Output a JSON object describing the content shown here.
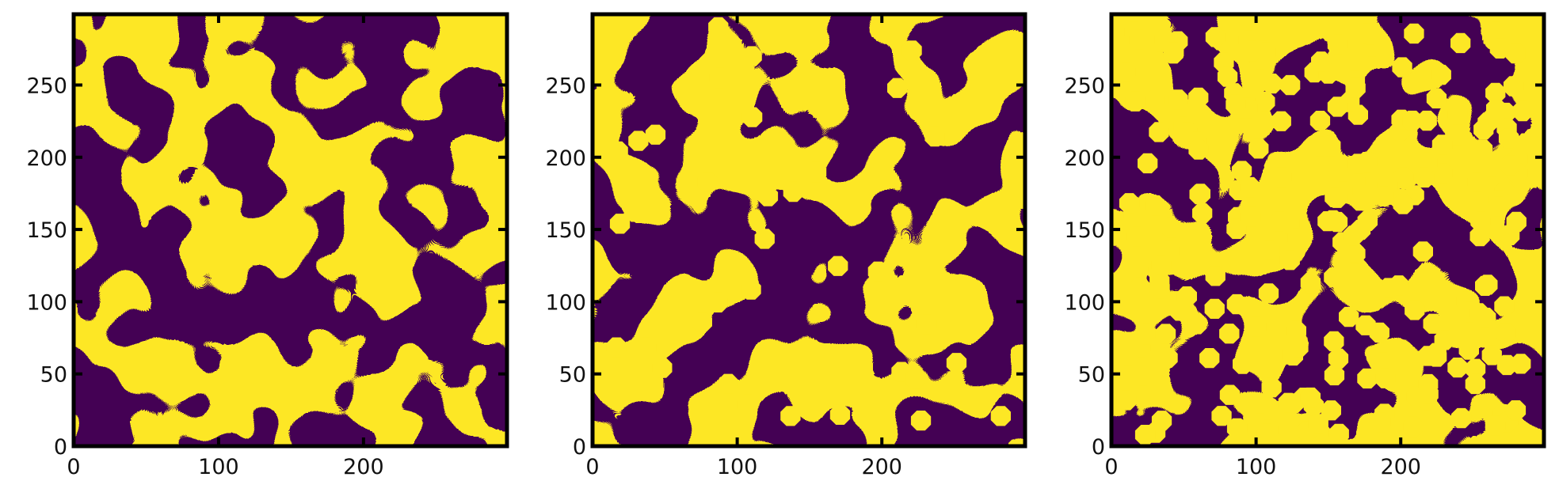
{
  "figure": {
    "colors": {
      "phase_low": "#440154",
      "phase_high": "#fde725",
      "axes": "#000000"
    },
    "panel_count": 3
  },
  "chart_data": [
    {
      "type": "heatmap",
      "title": "",
      "xlabel": "",
      "ylabel": "",
      "xlim": [
        0,
        299
      ],
      "ylim": [
        0,
        299
      ],
      "xticks": [
        0,
        100,
        200
      ],
      "yticks": [
        0,
        50,
        100,
        150,
        200,
        250
      ],
      "xtick_labels": [
        "0",
        "100",
        "200"
      ],
      "ytick_labels": [
        "0",
        "50",
        "100",
        "150",
        "200",
        "250"
      ],
      "colormap": "viridis (binary)",
      "values": [
        0,
        1
      ],
      "grid": false,
      "content": "random two-phase binary field",
      "yellow_fraction": 0.5,
      "inclusion_count": 0
    },
    {
      "type": "heatmap",
      "title": "",
      "xlabel": "",
      "ylabel": "",
      "xlim": [
        0,
        299
      ],
      "ylim": [
        0,
        299
      ],
      "xticks": [
        0,
        100,
        200
      ],
      "yticks": [
        0,
        50,
        100,
        150,
        200,
        250
      ],
      "xtick_labels": [
        "0",
        "100",
        "200"
      ],
      "ytick_labels": [
        "0",
        "50",
        "100",
        "150",
        "200",
        "250"
      ],
      "colormap": "viridis (binary)",
      "values": [
        0,
        1
      ],
      "grid": false,
      "content": "binary field with octagonal inclusions",
      "yellow_fraction": 0.55,
      "inclusion_count": 34
    },
    {
      "type": "heatmap",
      "title": "",
      "xlabel": "",
      "ylabel": "",
      "xlim": [
        0,
        299
      ],
      "ylim": [
        0,
        299
      ],
      "xticks": [
        0,
        100,
        200
      ],
      "yticks": [
        0,
        50,
        100,
        150,
        200,
        250
      ],
      "xtick_labels": [
        "0",
        "100",
        "200"
      ],
      "ytick_labels": [
        "0",
        "50",
        "100",
        "150",
        "200",
        "250"
      ],
      "colormap": "viridis (binary)",
      "values": [
        0,
        1
      ],
      "grid": false,
      "content": "binary field densely packed with octagonal inclusions",
      "yellow_fraction": 0.45,
      "inclusion_count": 240
    }
  ]
}
